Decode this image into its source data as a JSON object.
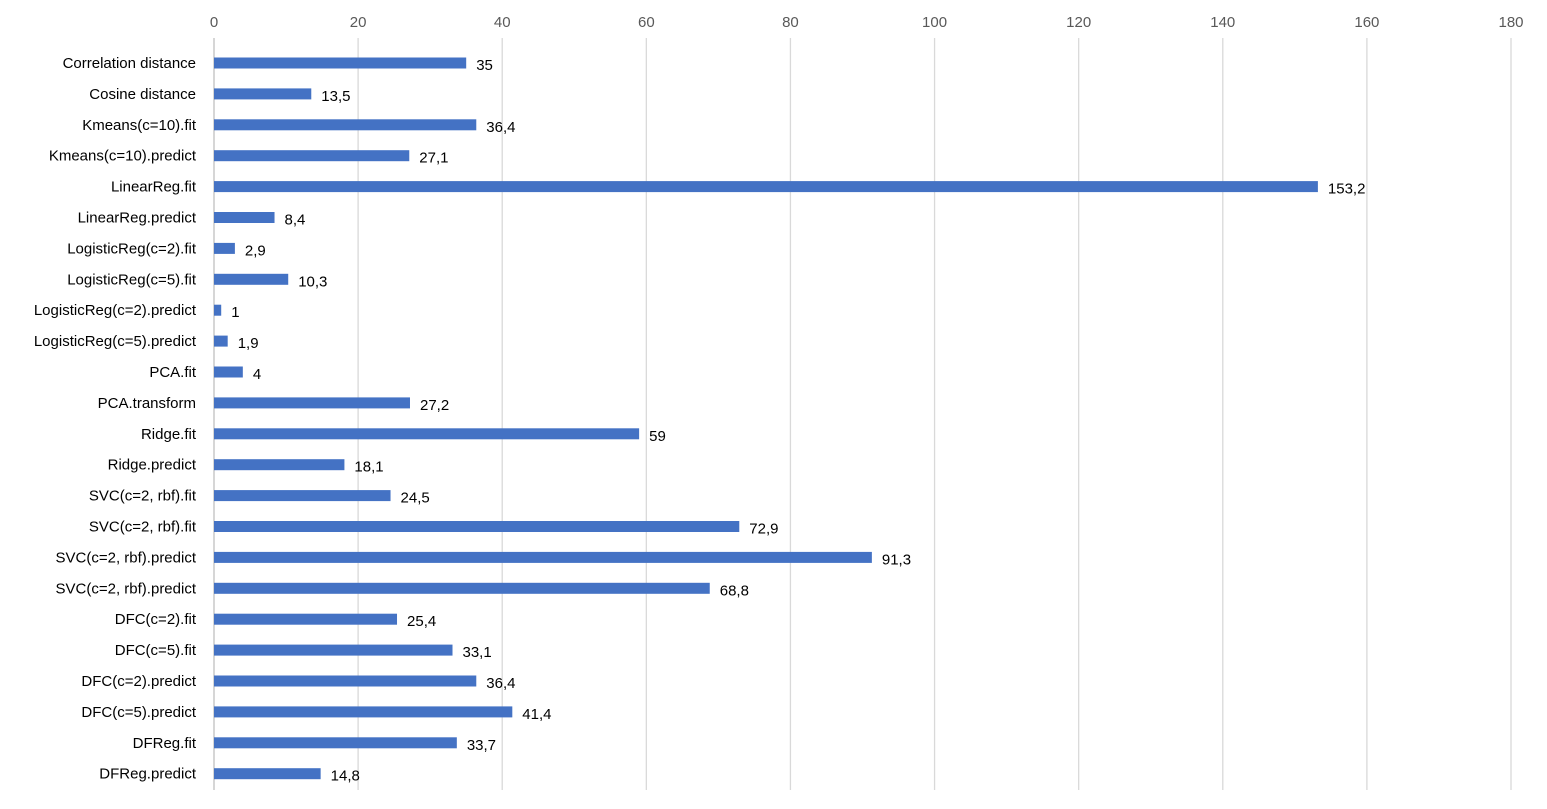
{
  "chart_data": {
    "type": "bar",
    "orientation": "horizontal",
    "title": "",
    "xlabel": "",
    "ylabel": "",
    "xlim": [
      0,
      180
    ],
    "x_ticks": [
      0,
      20,
      40,
      60,
      80,
      100,
      120,
      140,
      160,
      180
    ],
    "grid": true,
    "x_axis_position": "top",
    "decimal_separator": ",",
    "bar_color": "#4472C4",
    "categories": [
      "Correlation distance",
      "Cosine distance",
      "Kmeans(c=10).fit",
      "Kmeans(c=10).predict",
      "LinearReg.fit",
      "LinearReg.predict",
      "LogisticReg(c=2).fit",
      "LogisticReg(c=5).fit",
      "LogisticReg(c=2).predict",
      "LogisticReg(c=5).predict",
      "PCA.fit",
      "PCA.transform",
      "Ridge.fit",
      "Ridge.predict",
      "SVC(c=2, rbf).fit",
      "SVC(c=2, rbf).fit",
      "SVC(c=2, rbf).predict",
      "SVC(c=2, rbf).predict",
      "DFC(c=2).fit",
      "DFC(c=5).fit",
      "DFC(c=2).predict",
      "DFC(c=5).predict",
      "DFReg.fit",
      "DFReg.predict"
    ],
    "values": [
      35,
      13.5,
      36.4,
      27.1,
      153.2,
      8.4,
      2.9,
      10.3,
      1,
      1.9,
      4,
      27.2,
      59,
      18.1,
      24.5,
      72.9,
      91.3,
      68.8,
      25.4,
      33.1,
      36.4,
      41.4,
      33.7,
      14.8
    ],
    "labels": [
      "35",
      "13,5",
      "36,4",
      "27,1",
      "153,2",
      "8,4",
      "2,9",
      "10,3",
      "1",
      "1,9",
      "4",
      "27,2",
      "59",
      "18,1",
      "24,5",
      "72,9",
      "91,3",
      "68,8",
      "25,4",
      "33,1",
      "36,4",
      "41,4",
      "33,7",
      "14,8"
    ]
  }
}
